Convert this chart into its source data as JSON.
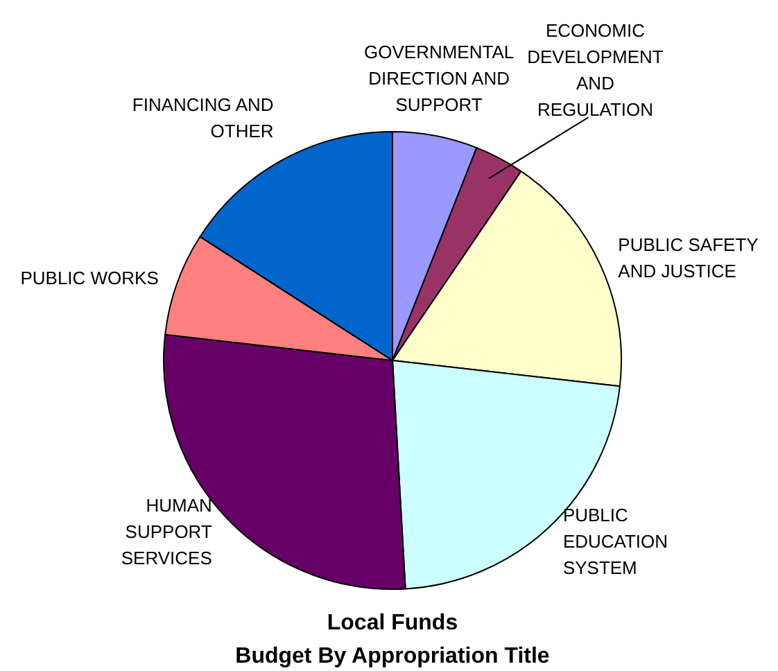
{
  "chart_data": {
    "type": "pie",
    "title": "Local Funds",
    "subtitle": "Budget By Appropriation Title",
    "categories": [
      "GOVERNMENTAL DIRECTION AND SUPPORT",
      "ECONOMIC DEVELOPMENT AND REGULATION",
      "PUBLIC SAFETY AND JUSTICE",
      "PUBLIC EDUCATION SYSTEM",
      "HUMAN SUPPORT SERVICES",
      "PUBLIC WORKS",
      "FINANCING AND OTHER"
    ],
    "values": [
      6,
      3.5,
      17.3,
      22.3,
      27.7,
      7.3,
      15.9
    ],
    "colors": [
      "#9999ff",
      "#993366",
      "#ffffcc",
      "#ccffff",
      "#660066",
      "#ff8080",
      "#0066cc"
    ]
  }
}
